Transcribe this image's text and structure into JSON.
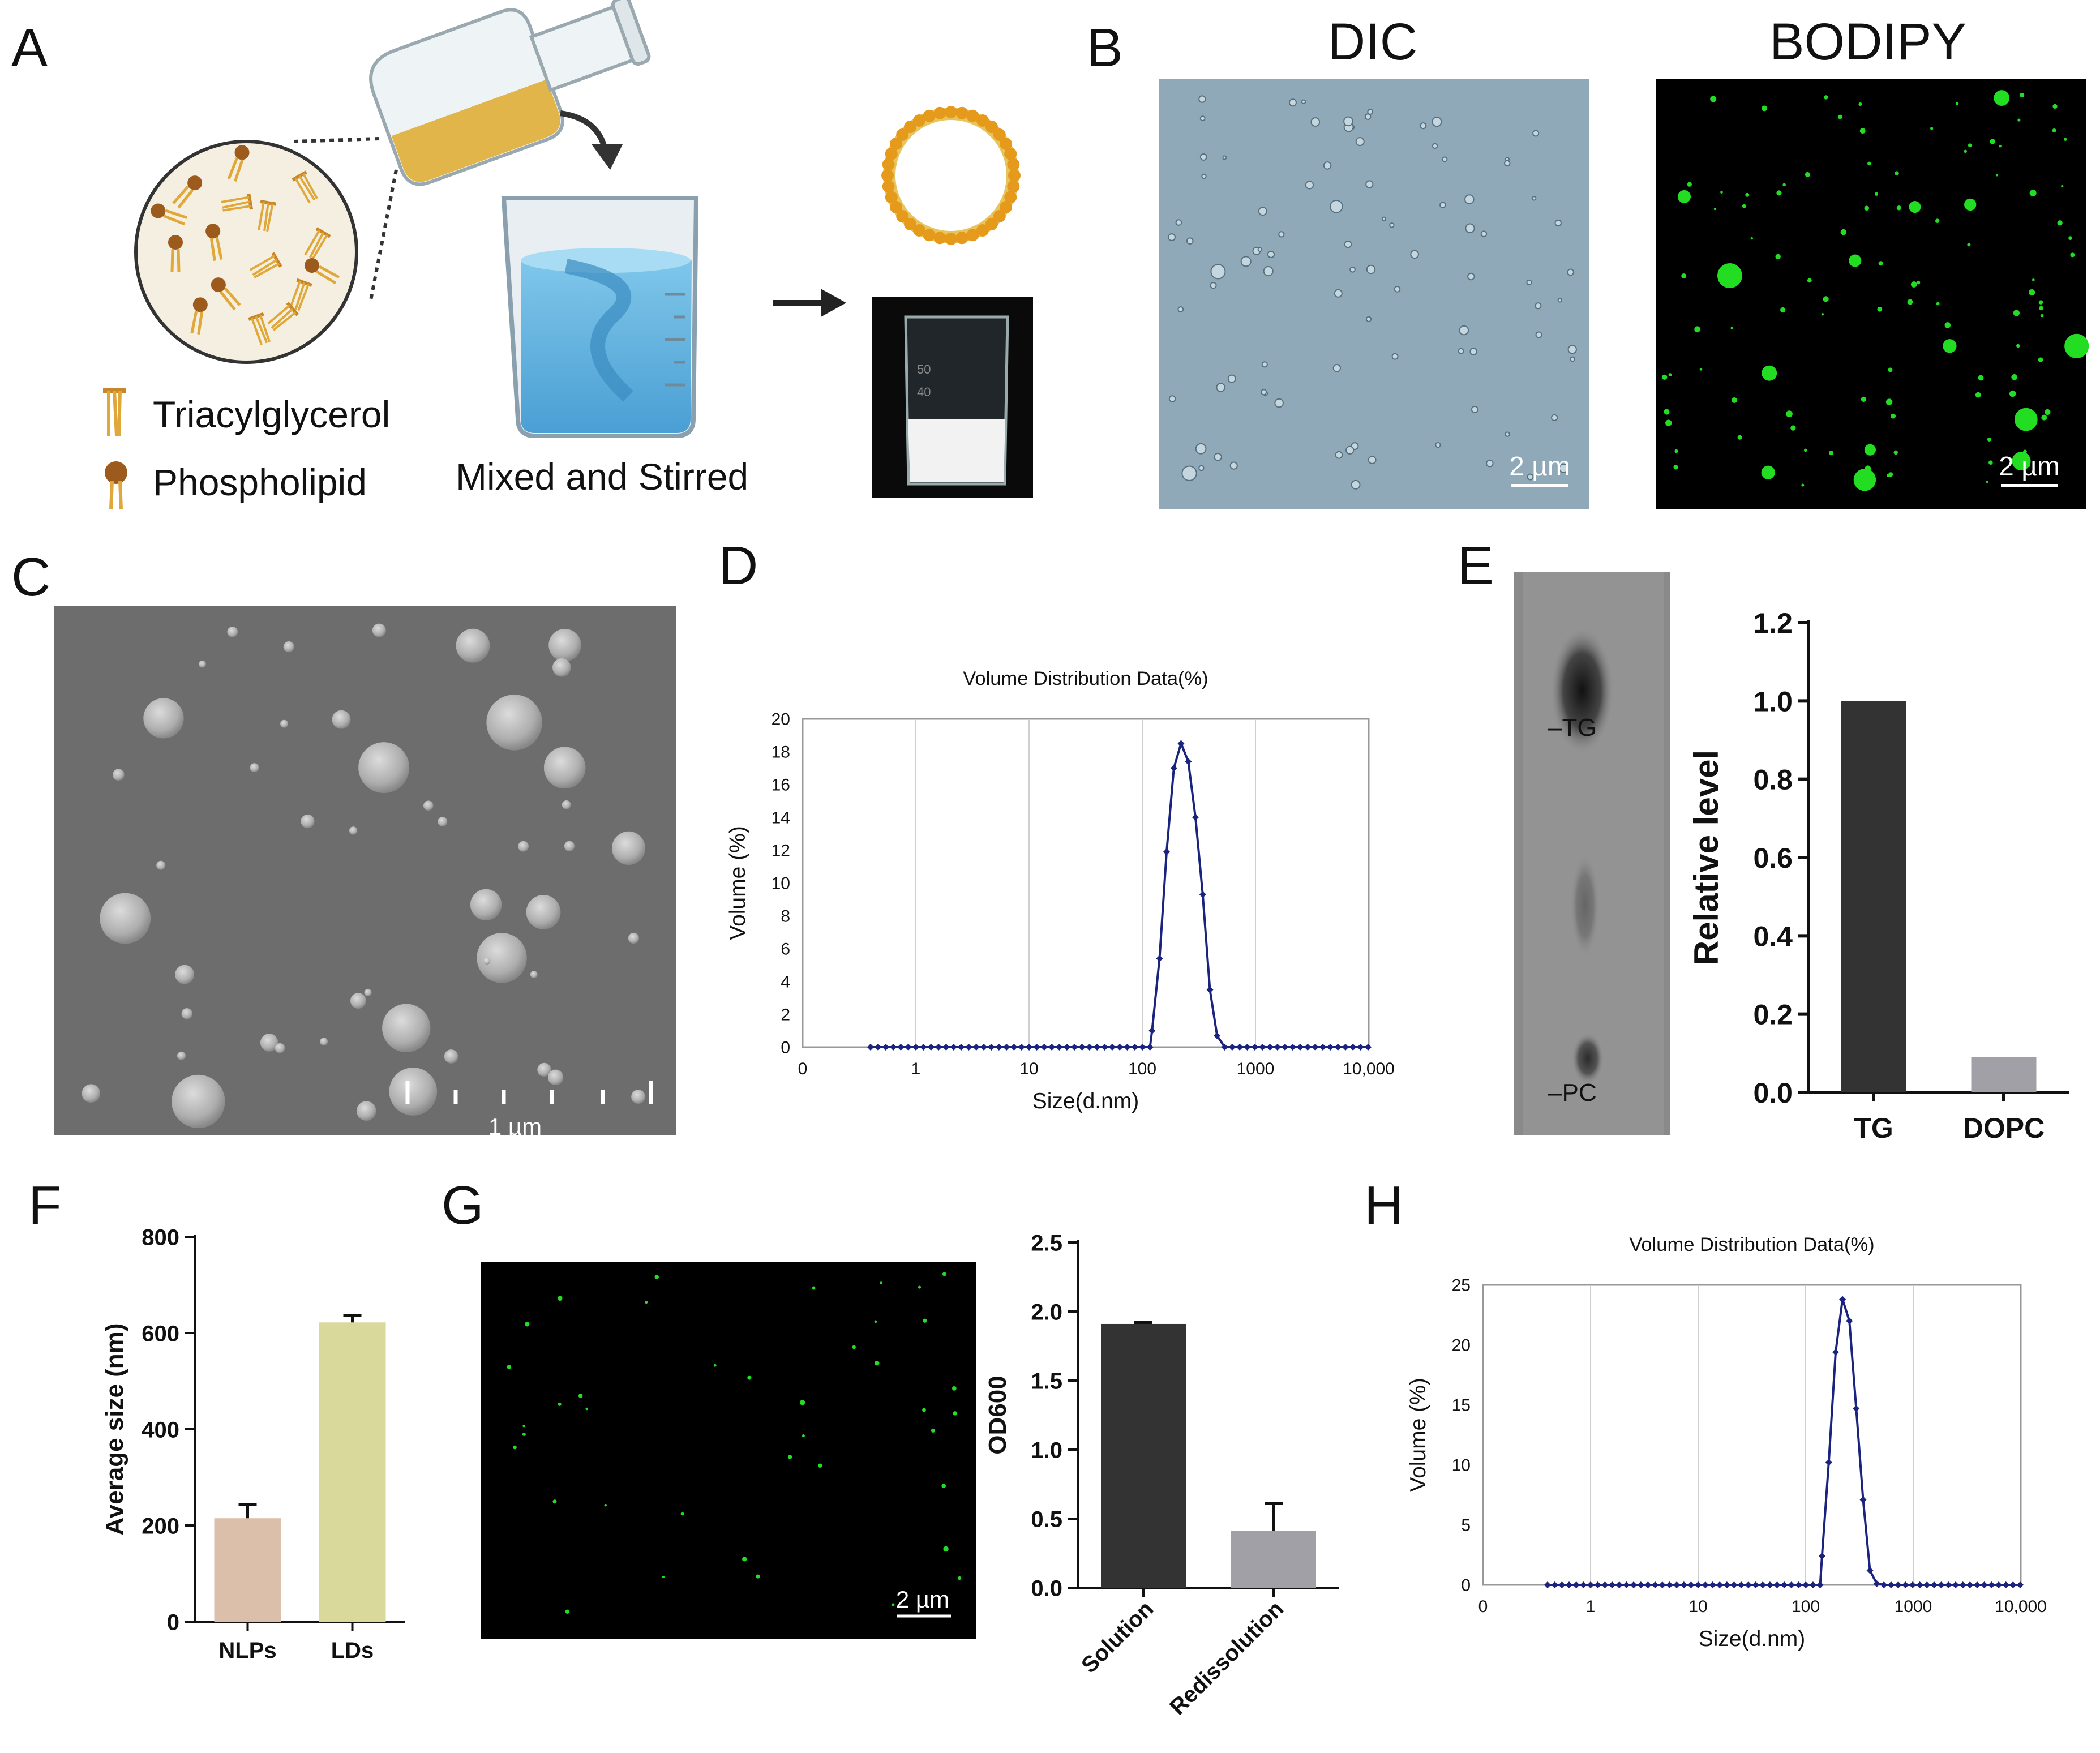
{
  "panels": {
    "A": {
      "label": "A",
      "legend": [
        "Triacylglycerol",
        "Phospholipid"
      ],
      "caption": "Mixed and Stirred"
    },
    "B": {
      "label": "B",
      "titles": [
        "DIC",
        "BODIPY"
      ],
      "scale_bar": "2 µm"
    },
    "C": {
      "label": "C",
      "scale_bar": "1 µm"
    },
    "D": {
      "label": "D"
    },
    "E": {
      "label": "E",
      "tlc_labels": [
        "TG",
        "PC"
      ]
    },
    "F": {
      "label": "F"
    },
    "G": {
      "label": "G",
      "scale_bar": "2 µm"
    },
    "H": {
      "label": "H"
    }
  },
  "colors": {
    "dls_line": "#1a237e",
    "bar_dark": "#333333",
    "bar_gray": "#a0a0a6",
    "bar_pink": "#dbbfaa",
    "bar_olive": "#d8d99a",
    "fluor_green": "#22dd22",
    "dic_bg": "#8fa9b8",
    "sem_bg": "#6d6d6d"
  },
  "chart_data": [
    {
      "id": "D",
      "type": "line",
      "title": "Volume Distribution Data(%)",
      "xlabel": "Size(d.nm)",
      "ylabel": "Volume (%)",
      "xscale": "log",
      "x_tick_labels": [
        "0",
        "1",
        "10",
        "100",
        "1000",
        "10,000"
      ],
      "ylim": [
        0,
        20
      ],
      "y_ticks": [
        0,
        2,
        4,
        6,
        8,
        10,
        12,
        14,
        16,
        18,
        20
      ],
      "peak_x": [
        122,
        142,
        164,
        190,
        220,
        255,
        295,
        342,
        396,
        458
      ],
      "peak_y": [
        1.0,
        5.4,
        11.9,
        17.0,
        18.5,
        17.4,
        14.0,
        9.3,
        3.5,
        0.7
      ]
    },
    {
      "id": "E",
      "type": "bar",
      "categories": [
        "TG",
        "DOPC"
      ],
      "values": [
        1.0,
        0.09
      ],
      "ylabel": "Relative level",
      "ylim": [
        0,
        1.2
      ],
      "y_ticks": [
        "0.0",
        "0.2",
        "0.4",
        "0.6",
        "0.8",
        "1.0",
        "1.2"
      ]
    },
    {
      "id": "F",
      "type": "bar",
      "categories": [
        "NLPs",
        "LDs"
      ],
      "values": [
        215,
        622
      ],
      "errors": [
        28,
        15
      ],
      "ylabel": "Average size (nm)",
      "ylim": [
        0,
        800
      ],
      "y_ticks": [
        "0",
        "200",
        "400",
        "600",
        "800"
      ]
    },
    {
      "id": "G",
      "type": "bar",
      "categories": [
        "Solution",
        "Redissolution"
      ],
      "values": [
        1.91,
        0.41
      ],
      "errors": [
        0.01,
        0.2
      ],
      "ylabel": "OD600",
      "ylim": [
        0,
        2.5
      ],
      "y_ticks": [
        "0.0",
        "0.5",
        "1.0",
        "1.5",
        "2.0",
        "2.5"
      ]
    },
    {
      "id": "H",
      "type": "line",
      "title": "Volume Distribution Data(%)",
      "xlabel": "Size(d.nm)",
      "ylabel": "Volume (%)",
      "xscale": "log",
      "x_tick_labels": [
        "0",
        "1",
        "10",
        "100",
        "1000",
        "10,000"
      ],
      "ylim": [
        0,
        25
      ],
      "y_ticks": [
        0,
        5,
        10,
        15,
        20,
        25
      ],
      "peak_x": [
        142,
        164,
        190,
        220,
        255,
        295,
        342,
        396,
        458
      ],
      "peak_y": [
        2.4,
        10.2,
        19.4,
        23.8,
        22.0,
        14.7,
        7.1,
        1.2,
        0.1
      ]
    }
  ]
}
